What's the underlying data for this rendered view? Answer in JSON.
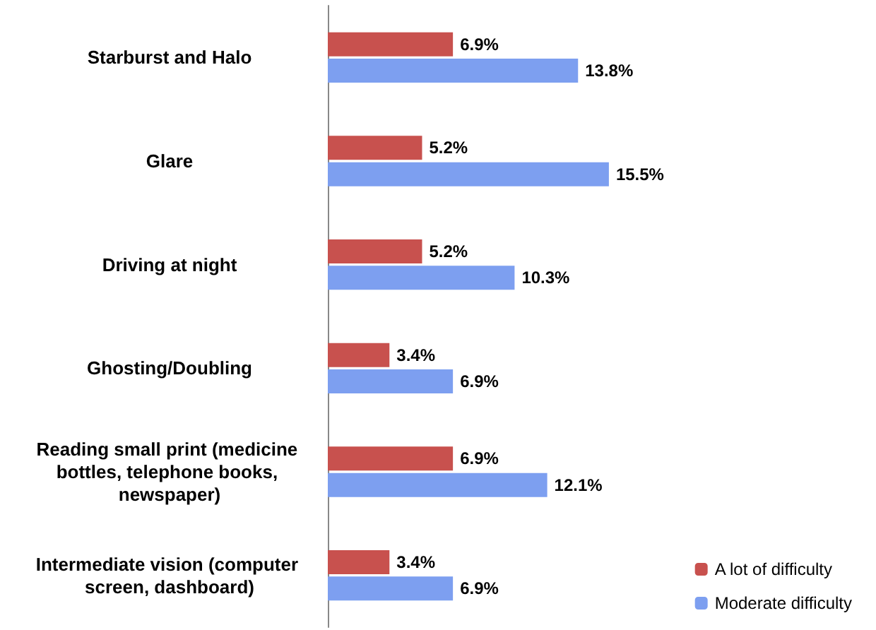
{
  "chart_data": {
    "type": "bar",
    "orientation": "horizontal",
    "categories": [
      "Starburst and Halo",
      "Glare",
      "Driving at night",
      "Ghosting/Doubling",
      "Reading small print (medicine bottles, telephone books, newspaper)",
      "Intermediate vision (computer screen, dashboard)"
    ],
    "series": [
      {
        "name": "A lot of difficulty",
        "color": "#c8514e",
        "values": [
          6.9,
          5.2,
          5.2,
          3.4,
          6.9,
          3.4
        ],
        "value_labels": [
          "6.9%",
          "5.2%",
          "5.2%",
          "3.4%",
          "6.9%",
          "3.4%"
        ]
      },
      {
        "name": "Moderate difficulty",
        "color": "#7d9ff0",
        "values": [
          13.8,
          15.5,
          10.3,
          6.9,
          12.1,
          6.9
        ],
        "value_labels": [
          "13.8%",
          "15.5%",
          "10.3%",
          "6.9%",
          "12.1%",
          "6.9%"
        ]
      }
    ],
    "legend": "bottom right",
    "grid": false
  }
}
